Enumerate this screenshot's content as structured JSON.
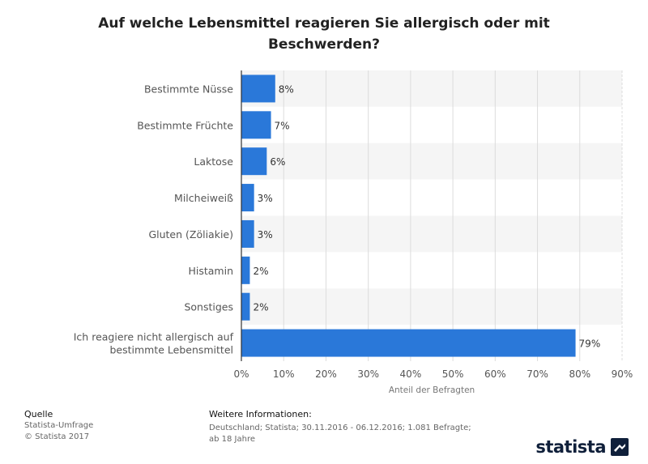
{
  "chart_data": {
    "type": "bar",
    "orientation": "horizontal",
    "title": "Auf welche Lebensmittel reagieren Sie allergisch oder mit Beschwerden?",
    "categories": [
      "Bestimmte Nüsse",
      "Bestimmte Früchte",
      "Laktose",
      "Milcheiweiß",
      "Gluten (Zöliakie)",
      "Histamin",
      "Sonstiges",
      "Ich reagiere nicht allergisch auf bestimmte Lebensmittel"
    ],
    "category_lines": [
      [
        "Bestimmte Nüsse"
      ],
      [
        "Bestimmte Früchte"
      ],
      [
        "Laktose"
      ],
      [
        "Milcheiweiß"
      ],
      [
        "Gluten (Zöliakie)"
      ],
      [
        "Histamin"
      ],
      [
        "Sonstiges"
      ],
      [
        "Ich reagiere nicht allergisch auf",
        "bestimmte Lebensmittel"
      ]
    ],
    "values": [
      8,
      7,
      6,
      3,
      3,
      2,
      2,
      79
    ],
    "value_labels": [
      "8%",
      "7%",
      "6%",
      "3%",
      "3%",
      "2%",
      "2%",
      "79%"
    ],
    "xlabel": "Anteil der Befragten",
    "xlim": [
      0,
      90
    ],
    "xticks": [
      0,
      10,
      20,
      30,
      40,
      50,
      60,
      70,
      80,
      90
    ],
    "xtick_labels": [
      "0%",
      "10%",
      "20%",
      "30%",
      "40%",
      "50%",
      "60%",
      "70%",
      "80%",
      "90%"
    ],
    "bar_color": "#2a78d9",
    "grid": true
  },
  "footer": {
    "source_heading": "Quelle",
    "source_lines": [
      "Statista-Umfrage",
      "© Statista 2017"
    ],
    "info_heading": "Weitere Informationen:",
    "info_lines": [
      "Deutschland; Statista; 30.11.2016 - 06.12.2016; 1.081 Befragte;",
      "ab 18 Jahre"
    ]
  },
  "brand": {
    "name": "statista",
    "color": "#0f1f3a"
  }
}
